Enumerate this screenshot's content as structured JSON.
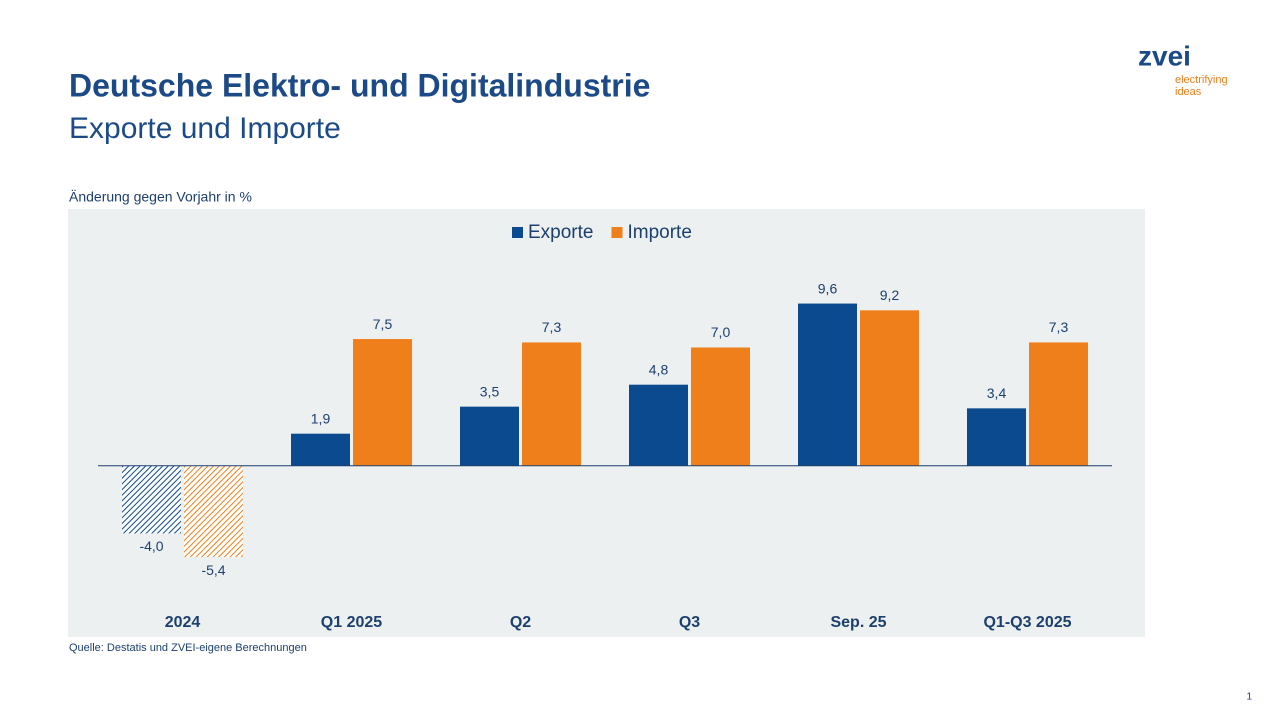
{
  "header": {
    "title": "Deutsche Elektro- und Digitalindustrie",
    "subtitle": "Exporte und Importe"
  },
  "logo": {
    "name": "zvei",
    "tagline_1": "electrifying",
    "tagline_2": "ideas"
  },
  "chart_data": {
    "type": "bar",
    "y_label": "Änderung gegen Vorjahr in %",
    "categories": [
      "2024",
      "Q1 2025",
      "Q2",
      "Q3",
      "Sep. 25",
      "Q1-Q3 2025"
    ],
    "series": [
      {
        "name": "Exporte",
        "color": "#0b4a8f",
        "values": [
          -4.0,
          1.9,
          3.5,
          4.8,
          9.6,
          3.4
        ],
        "value_labels": [
          "-4,0",
          "1,9",
          "3,5",
          "4,8",
          "9,6",
          "3,4"
        ]
      },
      {
        "name": "Importe",
        "color": "#ee7f1a",
        "values": [
          -5.4,
          7.5,
          7.3,
          7.0,
          9.2,
          7.3
        ],
        "value_labels": [
          "-5,4",
          "7,5",
          "7,3",
          "7,0",
          "9,2",
          "7,3"
        ]
      }
    ],
    "hatched": [
      true,
      false,
      false,
      false,
      false,
      false
    ],
    "ylim": [
      -8,
      12
    ],
    "legend": "top",
    "background": "#edf0f1"
  },
  "source": "Quelle: Destatis und ZVEI-eigene Berechnungen",
  "page_number": 1
}
